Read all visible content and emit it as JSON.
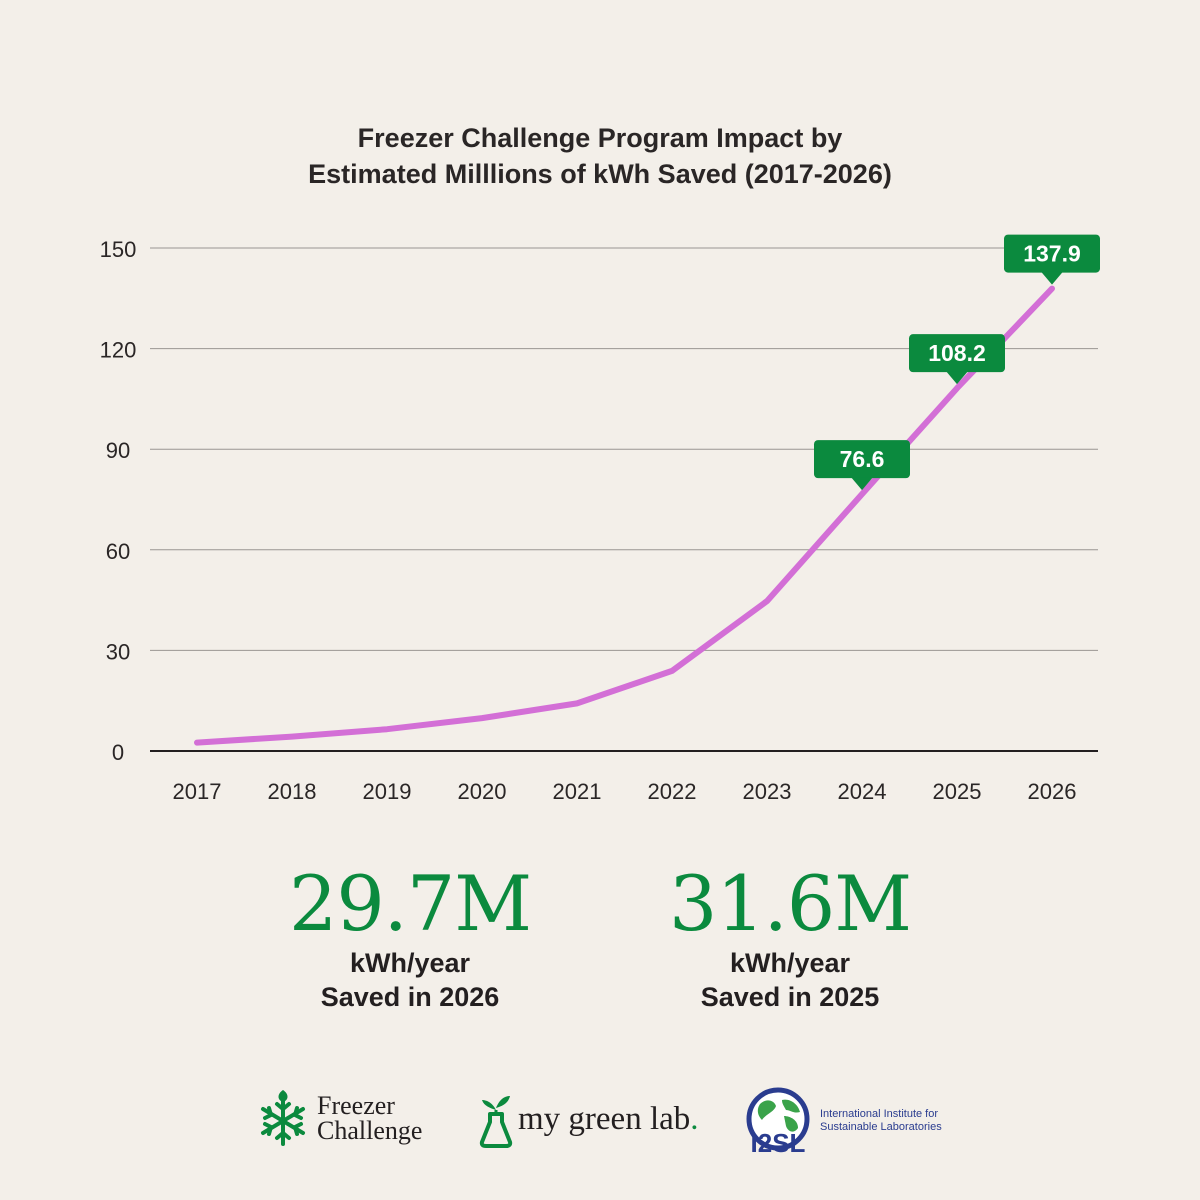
{
  "chart_data": {
    "type": "line",
    "title": "Freezer Challenge Program Impact by Estimated Milllions of kWh Saved (2017-2026)",
    "title_lines": [
      "Freezer Challenge Program Impact by",
      "Estimated Milllions of kWh Saved (2017-2026)"
    ],
    "x": [
      "2017",
      "2018",
      "2019",
      "2020",
      "2021",
      "2022",
      "2023",
      "2024",
      "2025",
      "2026"
    ],
    "series": [
      {
        "values": [
          2.5,
          4.3,
          6.5,
          9.8,
          14.2,
          23.9,
          44.7,
          76.6,
          108.2,
          137.9
        ],
        "color": "#d36fd6"
      }
    ],
    "annotations": [
      {
        "x": "2024",
        "label": "76.6"
      },
      {
        "x": "2025",
        "label": "108.2"
      },
      {
        "x": "2026",
        "label": "137.9"
      }
    ],
    "yticks": [
      "0",
      "30",
      "60",
      "90",
      "120",
      "150"
    ],
    "ylim": [
      0,
      150
    ],
    "grid": true,
    "xlabel": "",
    "ylabel": ""
  },
  "stats": [
    {
      "value": "29.7M",
      "unit": "kWh/year",
      "desc": "Saved in 2026"
    },
    {
      "value": "31.6M",
      "unit": "kWh/year",
      "desc": "Saved in 2025"
    }
  ],
  "logos": {
    "freezer_challenge": {
      "line1": "Freezer",
      "line2": "Challenge",
      "icon": "snowflake-leaf-icon"
    },
    "my_green_lab": {
      "text": "my green lab",
      "dot": ".",
      "icon": "flask-sprout-icon"
    },
    "i2sl": {
      "abbr": "I2SL",
      "line1": "International Institute for",
      "line2": "Sustainable Laboratories",
      "icon": "globe-icon"
    }
  },
  "colors": {
    "accent": "#0b8a3e",
    "line": "#d36fd6",
    "background": "#f3efe9"
  }
}
